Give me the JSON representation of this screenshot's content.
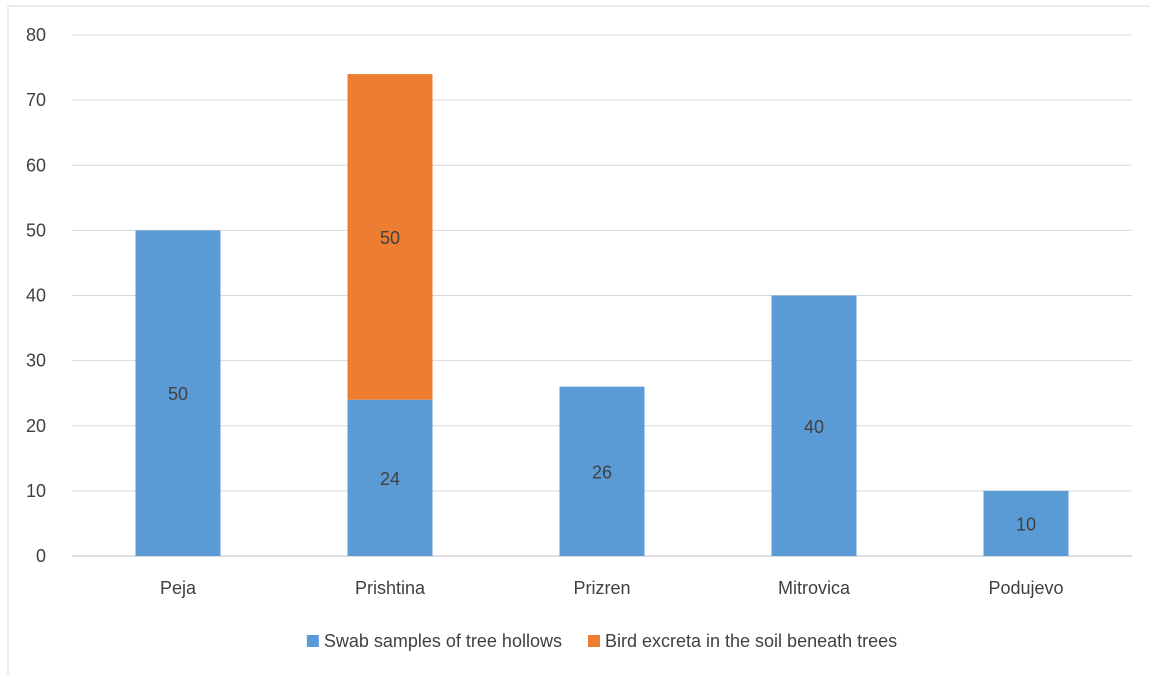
{
  "chart_data": {
    "type": "bar",
    "stacked": true,
    "categories": [
      "Peja",
      "Prishtina",
      "Prizren",
      "Mitrovica",
      "Podujevo"
    ],
    "series": [
      {
        "name": "Swab samples of tree hollows",
        "values": [
          50,
          24,
          26,
          40,
          10
        ],
        "color": "#5b9bd5"
      },
      {
        "name": "Bird excreta in the soil beneath trees",
        "values": [
          0,
          50,
          0,
          0,
          0
        ],
        "color": "#ed7d31"
      }
    ],
    "yticks": [
      "0",
      "10",
      "20",
      "30",
      "40",
      "50",
      "60",
      "70",
      "80"
    ],
    "ylim": [
      0,
      80
    ],
    "grid": true,
    "legend_position": "bottom",
    "title": "",
    "xlabel": "",
    "ylabel": ""
  }
}
